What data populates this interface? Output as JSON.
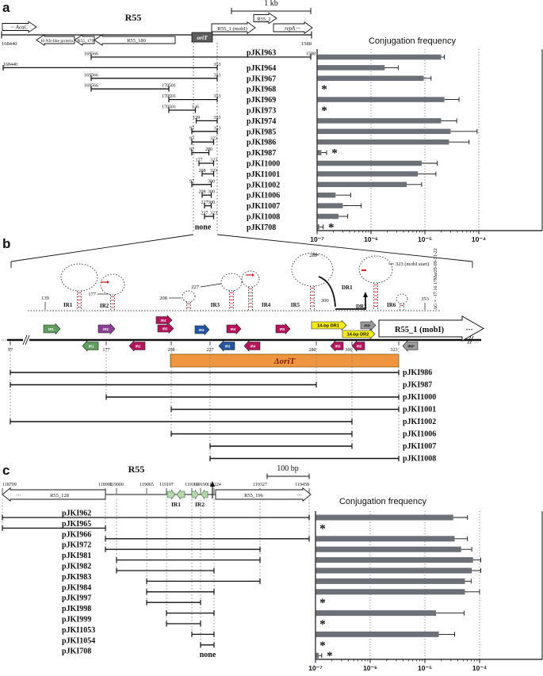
{
  "panel_a": {
    "label": "a",
    "scale_label": "1 kb",
    "map_title": "R55",
    "map_left_coord": "168440",
    "map_right_coord": "1588",
    "orit_label": "oriT",
    "genes": [
      {
        "label": "··· AcaC",
        "italic": true
      },
      {
        "label": "H-NS-like protein",
        "italic": false
      },
      {
        "label": "R55_179",
        "italic": false
      },
      {
        "label": "R55_180",
        "italic": false
      },
      {
        "label": "R55_1 (mobI)",
        "italic": false
      },
      {
        "label": "R55_2",
        "italic": false
      },
      {
        "label": "repA ···",
        "italic": true
      }
    ],
    "constructs": [
      {
        "name": "pJKI963",
        "start": "169566",
        "end": "1588",
        "value": 2e-05,
        "err": 2.3e-05,
        "asterisk": false
      },
      {
        "name": "pJKI964",
        "start": "168440",
        "end": "353",
        "value": 1.8e-06,
        "err": 3.2e-06,
        "asterisk": false
      },
      {
        "name": "pJKI967",
        "start": "169566",
        "end": "353",
        "value": 9.5e-06,
        "err": 1.3e-05,
        "asterisk": false
      },
      {
        "name": "pJKI968",
        "start": "169566",
        "end": "170501",
        "value": null,
        "err": null,
        "asterisk": true
      },
      {
        "name": "pJKI969",
        "start": "170501",
        "end": "353",
        "value": 2.3e-05,
        "err": 4.3e-05,
        "asterisk": false
      },
      {
        "name": "pJKI973",
        "start": "170501",
        "end": "136",
        "value": null,
        "err": null,
        "asterisk": true
      },
      {
        "name": "pJKI974",
        "start": "139",
        "end": "353",
        "value": 2e-05,
        "err": 3.9e-05,
        "asterisk": false
      },
      {
        "name": "pJKI985",
        "start": "97",
        "end": "353",
        "value": 3e-05,
        "err": 9.3e-05,
        "asterisk": false
      },
      {
        "name": "pJKI986",
        "start": "97",
        "end": "323",
        "value": 2.8e-05,
        "err": 6.6e-05,
        "asterisk": false
      },
      {
        "name": "pJKI987",
        "start": "97",
        "end": "280",
        "value": 1.2e-07,
        "err": 1.5e-07,
        "asterisk": true
      },
      {
        "name": "pJKI1000",
        "start": "177",
        "end": "323",
        "value": 8.7e-06,
        "err": 1.7e-05,
        "asterisk": false
      },
      {
        "name": "pJKI1001",
        "start": "208",
        "end": "323",
        "value": 7.4e-06,
        "err": 1.6e-05,
        "asterisk": false
      },
      {
        "name": "pJKI1002",
        "start": "97",
        "end": "300",
        "value": 4.6e-06,
        "err": 8.7e-06,
        "asterisk": false
      },
      {
        "name": "pJKI1006",
        "start": "208",
        "end": "300",
        "value": 2.2e-07,
        "err": 4.2e-07,
        "asterisk": false
      },
      {
        "name": "pJKI1007",
        "start": "227",
        "end": "300",
        "value": 3e-07,
        "err": 6.6e-07,
        "asterisk": false
      },
      {
        "name": "pJKI1008",
        "start": "227",
        "end": "323",
        "value": 2.5e-07,
        "err": 3.7e-07,
        "asterisk": false
      },
      {
        "name": "pJKI708",
        "none": "none",
        "value": 1.1e-07,
        "err": 1.3e-07,
        "asterisk": true
      }
    ],
    "chart": {
      "title": "Conjugation frequency",
      "ticks": [
        "10⁻⁷",
        "10⁻⁶",
        "10⁻⁵",
        "10⁻⁴"
      ]
    }
  },
  "panel_b": {
    "label": "b",
    "structure": {
      "pos_139": "139",
      "pos_177": "177",
      "pos_208": "208",
      "pos_227": "227",
      "pos_280": "280",
      "pos_300": "300",
      "pos_353": "353",
      "ir1": "IR1",
      "ir2": "IR2",
      "ir3": "IR3",
      "ir4": "IR4",
      "ir5": "IR5",
      "ir6": "IR6",
      "dr1": "DR1",
      "dr2": "DR2",
      "mobi_start_annot": "323 (mobI start)",
      "dg_text": "ΔG = -17.16 17Mar29-09-31-22"
    },
    "track": {
      "gene_label": "R55_1 (mobI)",
      "gene_suffix": "···",
      "positions": [
        "97",
        "177",
        "208",
        "227",
        "280",
        "300",
        "323"
      ],
      "features_above": [
        "IR1",
        "IR2",
        "IR4",
        "IR5",
        "IR3",
        "IR4",
        "IR5",
        "14-bp DR1",
        "14-bp DR2",
        "IR6*"
      ],
      "features_below": [
        "IR1",
        "IR2",
        "IR3",
        "IR4",
        "IR5",
        "IR5",
        "IR6*"
      ]
    },
    "delta_orit_label": "ΔoriT",
    "constructs": [
      {
        "name": "pJKI986",
        "start": "97",
        "end": "323"
      },
      {
        "name": "pJKI987",
        "start": "97",
        "end": "280"
      },
      {
        "name": "pJKI1000",
        "start": "177",
        "end": "323"
      },
      {
        "name": "pJKI1001",
        "start": "208",
        "end": "323"
      },
      {
        "name": "pJKI1002",
        "start": "97",
        "end": "300"
      },
      {
        "name": "pJKI1006",
        "start": "208",
        "end": "300"
      },
      {
        "name": "pJKI1007",
        "start": "227",
        "end": "300"
      },
      {
        "name": "pJKI1008",
        "start": "227",
        "end": "323"
      }
    ]
  },
  "panel_c": {
    "label": "c",
    "scale_label": "100 bp",
    "map_title": "R55",
    "coords": [
      "118709",
      "118981",
      "119000",
      "119065",
      "119107",
      "119169",
      "119190",
      "119224",
      "119327",
      "119458"
    ],
    "left_gene": "R55_128",
    "right_gene": "R55_196",
    "ellipsis": "···",
    "ir1_label": "IR1",
    "ir2_label": "IR2",
    "constructs": [
      {
        "name": "pJKI962",
        "start": "118709",
        "end": "119458",
        "value": 3.3e-05,
        "err": 6e-05,
        "asterisk": false
      },
      {
        "name": "pJKI965",
        "start": "118709",
        "end": "118981",
        "value": null,
        "err": null,
        "asterisk": true
      },
      {
        "name": "pJKI966",
        "start": "118981",
        "end": "119458",
        "value": 3.5e-05,
        "err": 6e-05,
        "asterisk": false
      },
      {
        "name": "pJKI972",
        "start": "118981",
        "end": "119327",
        "value": 4.6e-05,
        "err": 7.2e-05,
        "asterisk": false
      },
      {
        "name": "pJKI981",
        "start": "119000",
        "end": "119327",
        "value": 7.6e-05,
        "err": 0.000105,
        "asterisk": false
      },
      {
        "name": "pJKI982",
        "start": "119000",
        "end": "119224",
        "value": 7.2e-05,
        "err": 0.000105,
        "asterisk": false
      },
      {
        "name": "pJKI983",
        "start": "119065",
        "end": "119327",
        "value": 5.4e-05,
        "err": 7e-05,
        "asterisk": false
      },
      {
        "name": "pJKI984",
        "start": "119065",
        "end": "119224",
        "value": 5.4e-05,
        "err": 0.0001,
        "asterisk": false
      },
      {
        "name": "pJKI997",
        "start": "119065",
        "end": "119190",
        "value": null,
        "err": null,
        "asterisk": true
      },
      {
        "name": "pJKI998",
        "start": "119107",
        "end": "119224",
        "value": 1.6e-05,
        "err": 5.2e-05,
        "asterisk": false
      },
      {
        "name": "pJKI999",
        "start": "119107",
        "end": "119190",
        "value": null,
        "err": null,
        "asterisk": true
      },
      {
        "name": "pJKI1053",
        "start": "119169",
        "end": "119224",
        "value": 1.8e-05,
        "err": 3.5e-05,
        "asterisk": false
      },
      {
        "name": "pJKI1054",
        "start": "119190",
        "end": "119224",
        "value": null,
        "err": null,
        "asterisk": true
      },
      {
        "name": "pJKI708",
        "none": "none",
        "value": 1.15e-07,
        "err": 1.3e-07,
        "asterisk": true
      }
    ],
    "chart": {
      "title": "Conjugation frequency",
      "ticks": [
        "10⁻⁷",
        "10⁻⁶",
        "10⁻⁵",
        "10⁻⁴"
      ]
    }
  },
  "colors": {
    "bar": "#6b7177",
    "orange": "#f0953f",
    "orit_box": "#5c5c5c",
    "green": "#5f9e5f",
    "purple": "#8a3e96",
    "crimson": "#b5135b",
    "blue": "#2456a0",
    "yellow": "#f2ea1a",
    "gray_arrow": "#9b9b9b",
    "red_mark": "#cc2222"
  },
  "chart_data": [
    {
      "type": "bar",
      "orientation": "horizontal",
      "panel": "a",
      "title": "Conjugation frequency",
      "xscale": "log",
      "xlim": [
        1e-07,
        0.0001
      ],
      "categories": [
        "pJKI963",
        "pJKI964",
        "pJKI967",
        "pJKI968",
        "pJKI969",
        "pJKI973",
        "pJKI974",
        "pJKI985",
        "pJKI986",
        "pJKI987",
        "pJKI1000",
        "pJKI1001",
        "pJKI1002",
        "pJKI1006",
        "pJKI1007",
        "pJKI1008",
        "pJKI708"
      ],
      "values": [
        2e-05,
        1.8e-06,
        9.5e-06,
        null,
        2.3e-05,
        null,
        2e-05,
        3e-05,
        2.8e-05,
        1.2e-07,
        8.7e-06,
        7.4e-06,
        4.6e-06,
        2.2e-07,
        3e-07,
        2.5e-07,
        1.1e-07
      ],
      "errors_upper": [
        2.3e-05,
        3.2e-06,
        1.3e-05,
        null,
        4.3e-05,
        null,
        3.9e-05,
        9.3e-05,
        6.6e-05,
        1.5e-07,
        1.7e-05,
        1.6e-05,
        8.7e-06,
        4.2e-07,
        6.6e-07,
        3.7e-07,
        1.3e-07
      ],
      "asterisk_rows": [
        "pJKI968",
        "pJKI973",
        "pJKI987",
        "pJKI708"
      ]
    },
    {
      "type": "bar",
      "orientation": "horizontal",
      "panel": "c",
      "title": "Conjugation frequency",
      "xscale": "log",
      "xlim": [
        1e-07,
        0.0001
      ],
      "categories": [
        "pJKI962",
        "pJKI965",
        "pJKI966",
        "pJKI972",
        "pJKI981",
        "pJKI982",
        "pJKI983",
        "pJKI984",
        "pJKI997",
        "pJKI998",
        "pJKI999",
        "pJKI1053",
        "pJKI1054",
        "pJKI708"
      ],
      "values": [
        3.3e-05,
        null,
        3.5e-05,
        4.6e-05,
        7.6e-05,
        7.2e-05,
        5.4e-05,
        5.4e-05,
        null,
        1.6e-05,
        null,
        1.8e-05,
        null,
        1.15e-07
      ],
      "errors_upper": [
        6e-05,
        null,
        6e-05,
        7.2e-05,
        0.000105,
        0.000105,
        7e-05,
        0.0001,
        null,
        5.2e-05,
        null,
        3.5e-05,
        null,
        1.3e-07
      ],
      "asterisk_rows": [
        "pJKI965",
        "pJKI997",
        "pJKI999",
        "pJKI1054",
        "pJKI708"
      ]
    }
  ]
}
